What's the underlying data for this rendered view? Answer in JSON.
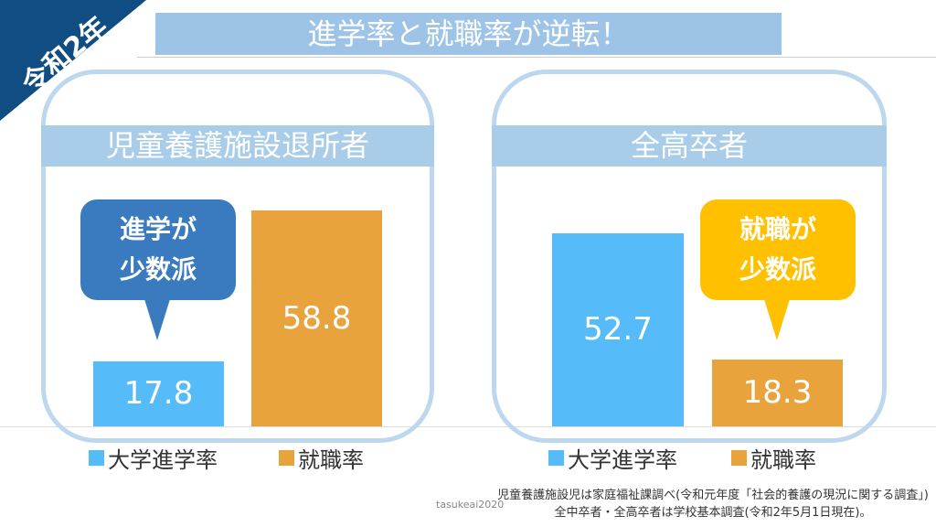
{
  "corner_label": "令和2年",
  "title": "進学率と就職率が逆転！",
  "colors": {
    "university": "#56bcf9",
    "employment": "#e8a33d",
    "callout_left": "#3a7bbf",
    "callout_right": "#ffc000"
  },
  "chart_data": [
    {
      "type": "bar",
      "title": "児童養護施設退所者",
      "categories": [
        "大学進学率",
        "就職率"
      ],
      "values": [
        17.8,
        58.8
      ],
      "callout": [
        "進学が",
        "少数派"
      ]
    },
    {
      "type": "bar",
      "title": "全高卒者",
      "categories": [
        "大学進学率",
        "就職率"
      ],
      "values": [
        52.7,
        18.3
      ],
      "callout": [
        "就職が",
        "少数派"
      ]
    }
  ],
  "legend": {
    "university": "大学進学率",
    "employment": "就職率"
  },
  "credit": "tasukeai2020",
  "notes": [
    "児童養護施設児は家庭福祉課調べ(令和元年度「社会的養護の現況に関する調査」)",
    "全中卒者・全高卒者は学校基本調査(令和2年5月1日現在)。"
  ]
}
